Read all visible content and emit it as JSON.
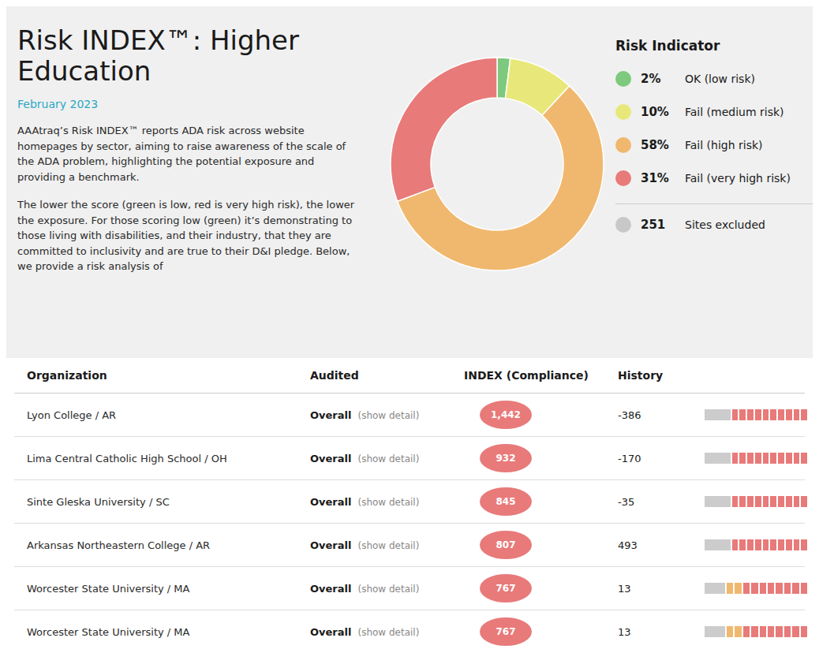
{
  "chart_data": {
    "type": "pie",
    "title": "Risk INDEX™: Higher Education",
    "subtitle": "February 2023",
    "annotations": [
      "AAAtraq’s Risk INDEX™ reports ADA risk across website homepages by sector, aiming to raise awareness of the scale of the ADA problem, highlighting the potential exposure and providing a benchmark.",
      "The lower the score (green is low, red is very high risk), the lower the exposure. For those scoring low (green) it’s demonstrating to those living with disabilities, and their industry, that they are committed to inclusivity and are true to their D&I pledge. Below, we provide a risk analysis of"
    ],
    "legend": "right",
    "legend_title": "Risk Indicator",
    "categories": [
      "OK (low risk)",
      "Fail (medium risk)",
      "Fail (high risk)",
      "Fail (very high risk)"
    ],
    "values": [
      2,
      10,
      58,
      31
    ],
    "value_labels": [
      "2%",
      "10%",
      "58%",
      "31%"
    ],
    "colors": [
      "#7dc97d",
      "#e8e87a",
      "#f0b86e",
      "#e87a7a"
    ],
    "excluded": {
      "label": "Sites excluded",
      "value": 251,
      "color": "#c8c8c8"
    },
    "table": {
      "columns": [
        "Organization",
        "Audited",
        "INDEX (Compliance)",
        "History"
      ],
      "color": "#e87a7a",
      "rows": [
        {
          "cells": [
            "Lyon College / AR",
            "Overall",
            "(show detail)",
            "1,442",
            "-386"
          ],
          "history": {
            "gray": 0.25,
            "colors": [
              "#e87a7a",
              "#e87a7a",
              "#e87a7a",
              "#e87a7a",
              "#e87a7a",
              "#e87a7a",
              "#e87a7a",
              "#e87a7a",
              "#e87a7a",
              "#e87a7a"
            ]
          }
        },
        {
          "cells": [
            "Lima Central Catholic High School / OH",
            "Overall",
            "(show detail)",
            "932",
            "-170"
          ],
          "history": {
            "gray": 0.25,
            "colors": [
              "#e87a7a",
              "#e87a7a",
              "#e87a7a",
              "#e87a7a",
              "#e87a7a",
              "#e87a7a",
              "#e87a7a",
              "#e87a7a",
              "#e87a7a",
              "#e87a7a"
            ]
          }
        },
        {
          "cells": [
            "Sinte Gleska University / SC",
            "Overall",
            "(show detail)",
            "845",
            "-35"
          ],
          "history": {
            "gray": 0.25,
            "colors": [
              "#e87a7a",
              "#e87a7a",
              "#e87a7a",
              "#e87a7a",
              "#e87a7a",
              "#e87a7a",
              "#e87a7a",
              "#e87a7a",
              "#e87a7a",
              "#e87a7a"
            ]
          }
        },
        {
          "cells": [
            "Arkansas Northeastern College / AR",
            "Overall",
            "(show detail)",
            "807",
            "493"
          ],
          "history": {
            "gray": 0.25,
            "colors": [
              "#e87a7a",
              "#e87a7a",
              "#e87a7a",
              "#e87a7a",
              "#e87a7a",
              "#e87a7a",
              "#e87a7a",
              "#e87a7a",
              "#e87a7a",
              "#e87a7a"
            ]
          }
        },
        {
          "cells": [
            "Worcester State University / MA",
            "Overall",
            "(show detail)",
            "767",
            "13"
          ],
          "history": {
            "gray": 0.2,
            "colors": [
              "#f0b86e",
              "#f0b86e",
              "#e87a7a",
              "#e87a7a",
              "#e87a7a",
              "#e87a7a",
              "#e87a7a",
              "#e87a7a",
              "#e87a7a",
              "#e87a7a"
            ]
          }
        },
        {
          "cells": [
            "Worcester State University / MA",
            "Overall",
            "(show detail)",
            "767",
            "13"
          ],
          "history": {
            "gray": 0.2,
            "colors": [
              "#f0b86e",
              "#f0b86e",
              "#e87a7a",
              "#e87a7a",
              "#e87a7a",
              "#e87a7a",
              "#e87a7a",
              "#e87a7a",
              "#e87a7a",
              "#e87a7a"
            ]
          }
        }
      ]
    }
  }
}
